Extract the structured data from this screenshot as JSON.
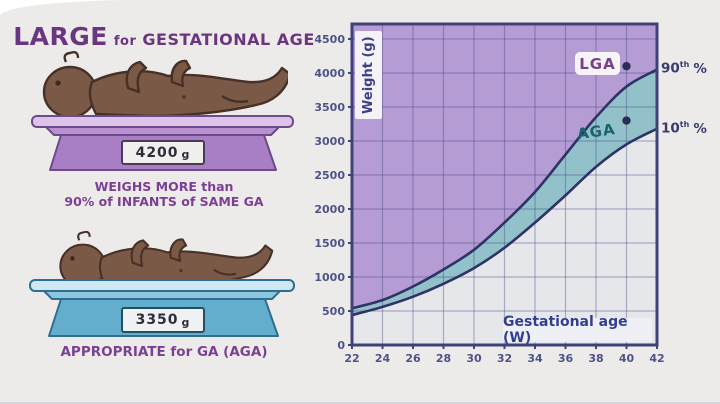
{
  "left_panel": {
    "title": {
      "word_large": "LARGE",
      "word_for": "for",
      "word_rest": "GESTATIONAL AGE"
    },
    "lga_scale": {
      "display_value": "4200",
      "display_unit": "g"
    },
    "lga_caption": {
      "line1": "WEIGHS MORE than",
      "line2": "90% of INFANTS of SAME GA"
    },
    "aga_scale": {
      "display_value": "3350",
      "display_unit": "g"
    },
    "aga_caption": "APPROPRIATE for GA (AGA)"
  },
  "chart": {
    "y_axis_label": "Weight (g)",
    "x_axis_label": "Gestational age (W)",
    "lga_label": "LGA",
    "aga_label": "AGA",
    "p90": {
      "num": "90",
      "sup": "th",
      "pct": "%"
    },
    "p10": {
      "num": "10",
      "sup": "th",
      "pct": "%"
    }
  },
  "colors": {
    "background": "#edebe9",
    "title_purple": "#6b3680",
    "caption_purple": "#7b3f94",
    "lga_text": "#7b3d8c",
    "aga_text": "#17646c",
    "scale_purple": "#a87fc4",
    "scale_blue": "#64aecd",
    "baby_skin": "#7b5947"
  },
  "chart_data": {
    "type": "area",
    "title": "Fetal weight percentile chart",
    "xlabel": "Gestational age (W)",
    "ylabel": "Weight (g)",
    "xlim": [
      22,
      42
    ],
    "ylim": [
      0,
      4720
    ],
    "x_ticks": [
      22,
      24,
      26,
      28,
      30,
      32,
      34,
      36,
      38,
      40,
      42
    ],
    "y_ticks": [
      0,
      500,
      1000,
      1500,
      2000,
      2500,
      3000,
      3500,
      4000,
      4500
    ],
    "grid": true,
    "x": [
      22,
      24,
      26,
      28,
      30,
      32,
      34,
      36,
      38,
      40,
      42
    ],
    "series": [
      {
        "name": "90th percentile",
        "values": [
          540,
          660,
          860,
          1110,
          1400,
          1800,
          2250,
          2800,
          3350,
          3800,
          4050
        ]
      },
      {
        "name": "10th percentile",
        "values": [
          440,
          560,
          710,
          900,
          1130,
          1430,
          1800,
          2200,
          2620,
          2950,
          3180
        ]
      }
    ],
    "points": [
      {
        "name": "LGA",
        "x": 40,
        "y": 4100
      },
      {
        "name": "AGA",
        "x": 40,
        "y": 3300
      }
    ],
    "regions": [
      {
        "name": "LGA region above 90th percentile",
        "color": "#b59cd4"
      },
      {
        "name": "AGA band between 10th and 90th percentile",
        "color": "#92c1ca"
      },
      {
        "name": "below 10th percentile",
        "color": "#e6e7eb"
      }
    ],
    "colors": {
      "curve": "#2e3366",
      "grid": "rgba(62,70,130,0.38)",
      "border": "#3e4278",
      "tick_text": "#4d5288",
      "dot": "#2a2d55"
    }
  }
}
